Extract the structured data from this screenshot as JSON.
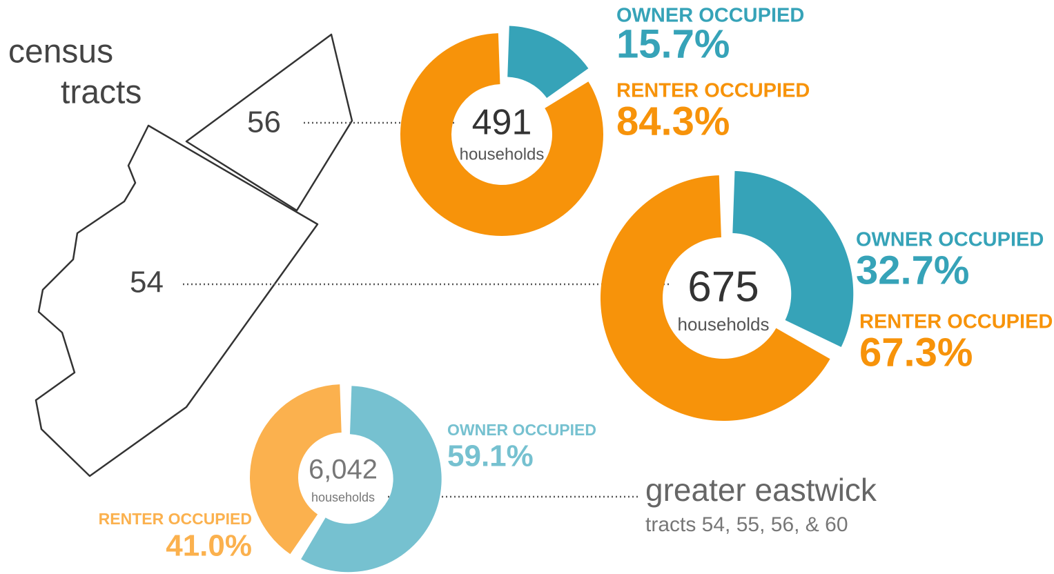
{
  "map": {
    "title_lines": [
      "census",
      "tracts"
    ],
    "tracts": [
      "56",
      "54"
    ],
    "region": {
      "title": "greater eastwick",
      "subtitle": "tracts 54, 55, 56, & 60"
    }
  },
  "chart_data": [
    {
      "type": "donut",
      "total": 491,
      "total_caption": "households",
      "categories": [
        "OWNER OCCUPIED",
        "RENTER OCCUPIED"
      ],
      "values": [
        15.7,
        84.3
      ],
      "value_labels": [
        "15.7%",
        "84.3%"
      ],
      "colors": [
        "#36a3b8",
        "#f7930a"
      ]
    },
    {
      "type": "donut",
      "total": 675,
      "total_caption": "households",
      "categories": [
        "OWNER OCCUPIED",
        "RENTER OCCUPIED"
      ],
      "values": [
        32.7,
        67.3
      ],
      "value_labels": [
        "32.7%",
        "67.3%"
      ],
      "colors": [
        "#36a3b8",
        "#f7930a"
      ]
    },
    {
      "type": "donut",
      "total": {
        "value": 6042,
        "label": "6,042"
      },
      "total_caption": "households",
      "categories": [
        "OWNER OCCUPIED",
        "RENTER OCCUPIED"
      ],
      "values": [
        59.1,
        41.0
      ],
      "value_labels": [
        "59.1%",
        "41.0%"
      ],
      "colors": [
        "#76c1d0",
        "#fbb14e"
      ]
    }
  ]
}
